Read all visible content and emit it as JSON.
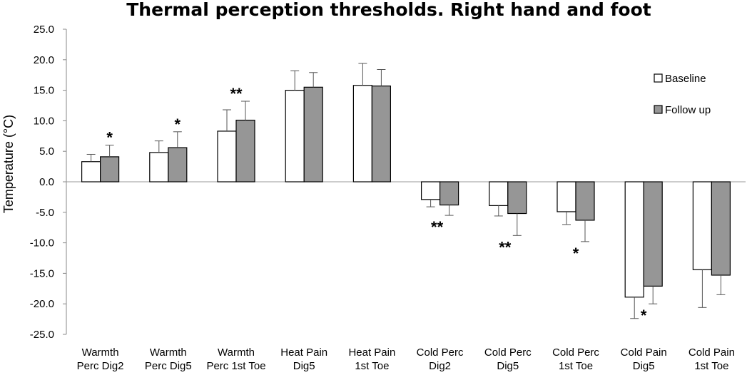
{
  "chart_data": {
    "type": "bar",
    "title": "Thermal perception thresholds. Right hand and foot",
    "xlabel": "",
    "ylabel": "Temperature (°C)",
    "ylim": [
      -25,
      25
    ],
    "yticks": [
      "25.0",
      "20.0",
      "15.0",
      "10.0",
      "5.0",
      "0.0",
      "-5.0",
      "-10.0",
      "-15.0",
      "-20.0",
      "-25.0"
    ],
    "ytick_values": [
      25,
      20,
      15,
      10,
      5,
      0,
      -5,
      -10,
      -15,
      -20,
      -25
    ],
    "grid": false,
    "legend_position": "top-right",
    "categories": [
      [
        "Warmth",
        "Perc Dig2"
      ],
      [
        "Warmth",
        "Perc Dig5"
      ],
      [
        "Warmth",
        "Perc 1st Toe"
      ],
      [
        "Heat Pain",
        "Dig5"
      ],
      [
        "Heat Pain",
        "1st Toe"
      ],
      [
        "Cold Perc",
        "Dig2"
      ],
      [
        "Cold Perc",
        "Dig5"
      ],
      [
        "Cold Perc",
        "1st Toe"
      ],
      [
        "Cold Pain",
        "Dig5"
      ],
      [
        "Cold Pain",
        "1st Toe"
      ]
    ],
    "series": [
      {
        "name": "Baseline",
        "color": "#ffffff",
        "values": [
          3.3,
          4.8,
          8.3,
          15.0,
          15.8,
          -2.9,
          -3.9,
          -4.9,
          -18.9,
          -14.4
        ],
        "errors": [
          1.2,
          1.9,
          3.5,
          3.2,
          3.6,
          1.2,
          1.7,
          2.1,
          3.5,
          6.2
        ]
      },
      {
        "name": "Follow up",
        "color": "#969696",
        "values": [
          4.1,
          5.6,
          10.1,
          15.5,
          15.7,
          -3.8,
          -5.2,
          -6.3,
          -17.1,
          -15.3
        ],
        "errors": [
          1.9,
          2.6,
          3.1,
          2.4,
          2.7,
          1.7,
          3.6,
          3.5,
          2.9,
          3.2
        ]
      }
    ],
    "annotations": [
      "*",
      "*",
      "**",
      "",
      "",
      "**",
      "**",
      "*",
      "*",
      ""
    ]
  }
}
